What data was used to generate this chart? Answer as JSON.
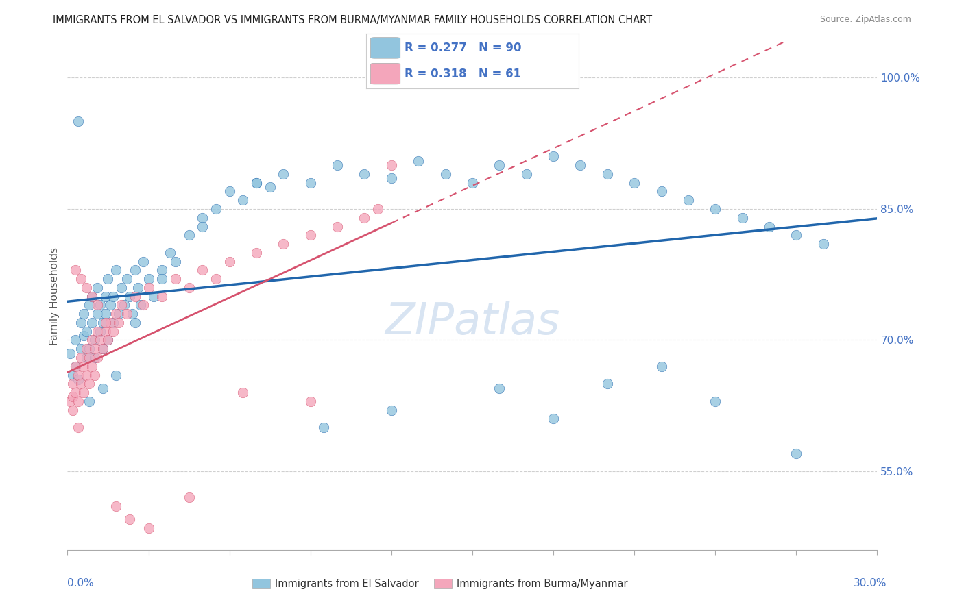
{
  "title": "IMMIGRANTS FROM EL SALVADOR VS IMMIGRANTS FROM BURMA/MYANMAR FAMILY HOUSEHOLDS CORRELATION CHART",
  "source": "Source: ZipAtlas.com",
  "ylabel": "Family Households",
  "x_min": 0.0,
  "x_max": 30.0,
  "y_min": 46.0,
  "y_max": 104.0,
  "y_ticks": [
    55.0,
    70.0,
    85.0,
    100.0
  ],
  "y_tick_labels": [
    "55.0%",
    "70.0%",
    "85.0%",
    "100.0%"
  ],
  "watermark": "ZIPatlas",
  "legend_r_blue": "R = 0.277",
  "legend_n_blue": "N = 90",
  "legend_r_pink": "R = 0.318",
  "legend_n_pink": "N = 61",
  "legend_label_blue": "Immigrants from El Salvador",
  "legend_label_pink": "Immigrants from Burma/Myanmar",
  "blue_color": "#92c5de",
  "pink_color": "#f4a6bb",
  "blue_line_color": "#2166ac",
  "pink_line_color": "#d6526e",
  "title_color": "#333333",
  "axis_label_color": "#4472c4",
  "grid_color": "#d0d0d0",
  "blue_scatter_x": [
    0.1,
    0.2,
    0.3,
    0.3,
    0.4,
    0.5,
    0.5,
    0.6,
    0.6,
    0.7,
    0.7,
    0.8,
    0.8,
    0.9,
    0.9,
    1.0,
    1.0,
    1.1,
    1.1,
    1.2,
    1.2,
    1.3,
    1.3,
    1.4,
    1.4,
    1.5,
    1.5,
    1.6,
    1.7,
    1.7,
    1.8,
    1.9,
    2.0,
    2.1,
    2.2,
    2.3,
    2.4,
    2.5,
    2.6,
    2.7,
    2.8,
    3.0,
    3.2,
    3.5,
    3.8,
    4.0,
    4.5,
    5.0,
    5.5,
    6.0,
    6.5,
    7.0,
    7.5,
    8.0,
    9.0,
    10.0,
    11.0,
    12.0,
    13.0,
    14.0,
    15.0,
    16.0,
    17.0,
    18.0,
    19.0,
    20.0,
    21.0,
    22.0,
    23.0,
    24.0,
    25.0,
    26.0,
    27.0,
    28.0,
    0.4,
    0.8,
    1.3,
    1.8,
    2.5,
    3.5,
    5.0,
    7.0,
    9.5,
    12.0,
    16.0,
    18.0,
    20.0,
    22.0,
    24.0,
    27.0
  ],
  "blue_scatter_y": [
    68.5,
    66.0,
    70.0,
    67.0,
    65.5,
    72.0,
    69.0,
    70.5,
    73.0,
    68.0,
    71.0,
    74.0,
    69.0,
    72.0,
    75.0,
    70.0,
    68.0,
    73.0,
    76.0,
    71.0,
    74.0,
    72.0,
    69.0,
    75.0,
    73.0,
    70.0,
    77.0,
    74.0,
    72.0,
    75.0,
    78.0,
    73.0,
    76.0,
    74.0,
    77.0,
    75.0,
    73.0,
    78.0,
    76.0,
    74.0,
    79.0,
    77.0,
    75.0,
    78.0,
    80.0,
    79.0,
    82.0,
    84.0,
    85.0,
    87.0,
    86.0,
    88.0,
    87.5,
    89.0,
    88.0,
    90.0,
    89.0,
    88.5,
    90.5,
    89.0,
    88.0,
    90.0,
    89.0,
    91.0,
    90.0,
    89.0,
    88.0,
    87.0,
    86.0,
    85.0,
    84.0,
    83.0,
    82.0,
    81.0,
    95.0,
    63.0,
    64.5,
    66.0,
    72.0,
    77.0,
    83.0,
    88.0,
    60.0,
    62.0,
    64.5,
    61.0,
    65.0,
    67.0,
    63.0,
    57.0
  ],
  "pink_scatter_x": [
    0.1,
    0.2,
    0.2,
    0.3,
    0.3,
    0.4,
    0.4,
    0.5,
    0.5,
    0.6,
    0.6,
    0.7,
    0.7,
    0.8,
    0.8,
    0.9,
    0.9,
    1.0,
    1.0,
    1.1,
    1.1,
    1.2,
    1.3,
    1.4,
    1.5,
    1.6,
    1.7,
    1.8,
    1.9,
    2.0,
    2.2,
    2.5,
    2.8,
    3.0,
    3.5,
    4.0,
    4.5,
    5.0,
    5.5,
    6.0,
    7.0,
    8.0,
    9.0,
    10.0,
    11.0,
    12.0,
    0.3,
    0.5,
    0.7,
    0.9,
    1.1,
    1.4,
    1.8,
    2.3,
    3.0,
    4.5,
    6.5,
    9.0,
    11.5,
    0.2,
    0.4
  ],
  "pink_scatter_y": [
    63.0,
    65.0,
    63.5,
    64.0,
    67.0,
    63.0,
    66.0,
    65.0,
    68.0,
    64.0,
    67.0,
    66.0,
    69.0,
    65.0,
    68.0,
    67.0,
    70.0,
    66.0,
    69.0,
    68.0,
    71.0,
    70.0,
    69.0,
    71.0,
    70.0,
    72.0,
    71.0,
    73.0,
    72.0,
    74.0,
    73.0,
    75.0,
    74.0,
    76.0,
    75.0,
    77.0,
    76.0,
    78.0,
    77.0,
    79.0,
    80.0,
    81.0,
    82.0,
    83.0,
    84.0,
    90.0,
    78.0,
    77.0,
    76.0,
    75.0,
    74.0,
    72.0,
    51.0,
    49.5,
    48.5,
    52.0,
    64.0,
    63.0,
    85.0,
    62.0,
    60.0
  ]
}
